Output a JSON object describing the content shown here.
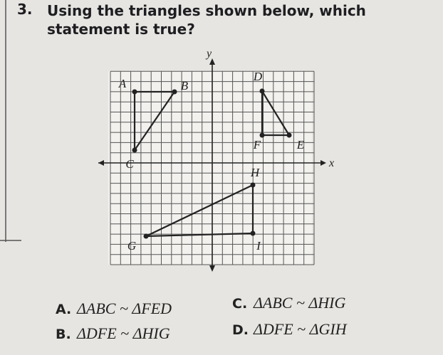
{
  "question": {
    "number": "3.",
    "line1": "Using the triangles shown below, which",
    "line2": "statement is true?"
  },
  "figure": {
    "x_axis_label": "x",
    "y_axis_label": "y",
    "points": [
      "A",
      "B",
      "C",
      "D",
      "E",
      "F",
      "G",
      "H",
      "I"
    ]
  },
  "choices": [
    {
      "letter": "A.",
      "text": "ΔABC ~ ΔFED"
    },
    {
      "letter": "B.",
      "text": "ΔDFE ~ ΔHIG"
    },
    {
      "letter": "C.",
      "text": "ΔABC ~ ΔHIG"
    },
    {
      "letter": "D.",
      "text": "ΔDFE ~ ΔGIH"
    }
  ]
}
